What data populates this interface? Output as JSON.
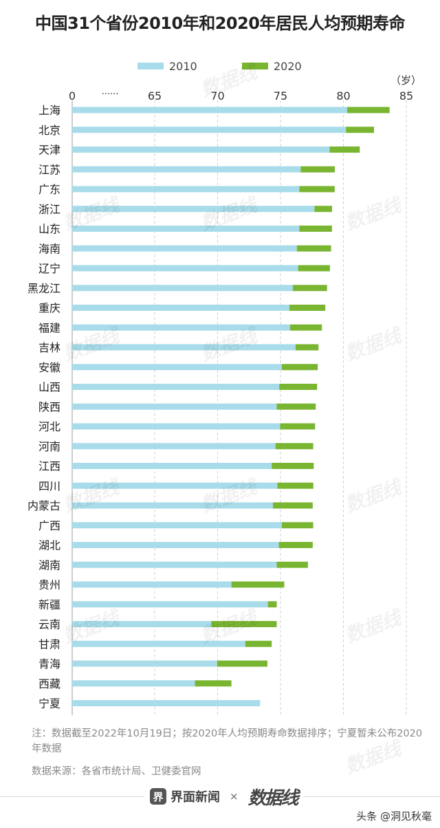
{
  "title": "中国31个省份2010年和2020年居民人均预期寿命",
  "chart_data": {
    "type": "bar",
    "orientation": "horizontal",
    "stacked_overlay": true,
    "unit_label": "（岁）",
    "axis_break_marker": "······",
    "x_ticks": [
      "0",
      "65",
      "70",
      "75",
      "80",
      "85"
    ],
    "xlim": [
      60,
      85
    ],
    "categories": [
      "上海",
      "北京",
      "天津",
      "江苏",
      "广东",
      "浙江",
      "山东",
      "海南",
      "辽宁",
      "黑龙江",
      "重庆",
      "福建",
      "吉林",
      "安徽",
      "山西",
      "陕西",
      "河北",
      "河南",
      "江西",
      "四川",
      "内蒙古",
      "广西",
      "湖北",
      "湖南",
      "贵州",
      "新疆",
      "云南",
      "甘肃",
      "青海",
      "西藏",
      "宁夏"
    ],
    "series": [
      {
        "name": "2010",
        "color": "#a8dcea",
        "values": [
          80.3,
          80.2,
          78.9,
          76.6,
          76.5,
          77.7,
          76.5,
          76.3,
          76.4,
          75.98,
          75.7,
          75.76,
          76.2,
          75.1,
          74.9,
          74.7,
          74.97,
          74.6,
          74.3,
          74.75,
          74.4,
          75.1,
          74.87,
          74.7,
          71.1,
          74.0,
          69.5,
          72.2,
          69.96,
          68.2,
          73.38
        ],
        "x": [
          80.3,
          80.2,
          78.9,
          76.6,
          76.5,
          77.7,
          76.5,
          76.3,
          76.4,
          75.98,
          75.7,
          75.76,
          76.2,
          75.1,
          74.9,
          74.7,
          74.97,
          74.6,
          74.3,
          74.75,
          74.4,
          75.1,
          74.87,
          74.7,
          71.1,
          74.0,
          69.5,
          72.2,
          69.96,
          68.2,
          73.38
        ]
      },
      {
        "name": "2020",
        "color": "#7ab532",
        "values": [
          83.67,
          82.43,
          81.3,
          79.32,
          79.31,
          79.1,
          79.09,
          79.02,
          78.93,
          78.7,
          78.56,
          78.29,
          78.02,
          77.96,
          77.91,
          77.8,
          77.75,
          77.6,
          77.64,
          77.61,
          77.56,
          77.6,
          77.56,
          77.18,
          75.3,
          74.7,
          74.7,
          74.3,
          73.96,
          71.1,
          null
        ],
        "x": [
          83.67,
          82.43,
          81.3,
          79.32,
          79.31,
          79.1,
          79.09,
          79.02,
          78.93,
          78.7,
          78.56,
          78.29,
          78.02,
          77.96,
          77.91,
          77.8,
          77.75,
          77.6,
          77.64,
          77.61,
          77.56,
          77.6,
          77.56,
          77.18,
          75.3,
          74.7,
          74.7,
          74.3,
          73.96,
          71.1,
          null
        ]
      }
    ],
    "legend_position": "top",
    "grid": true
  },
  "footnote": "注：数据截至2022年10月19日；按2020年人均预期寿命数据排序；宁夏暂未公布2020年数据",
  "source": "数据来源：各省市统计局、卫健委官网",
  "footer": {
    "brand_icon": "界",
    "brand_name": "界面新闻",
    "times": "×",
    "brand2": "数据线",
    "credit": "头条 @洞见秋毫"
  },
  "watermark_text": "数据线"
}
